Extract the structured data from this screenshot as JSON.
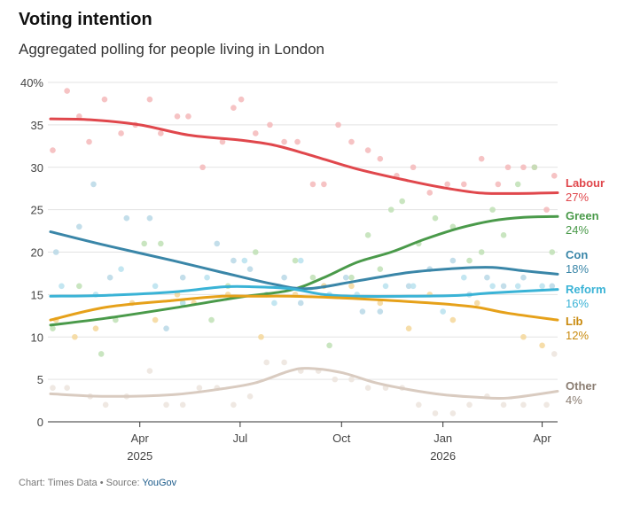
{
  "header": {
    "title": "Voting intention",
    "subtitle": "Aggregated polling for people living in London"
  },
  "footer": {
    "prefix": "Chart: Times Data • Source: ",
    "source": "YouGov"
  },
  "chart_data": {
    "type": "line",
    "title": "Voting intention",
    "subtitle": "Aggregated polling for people living in London",
    "xlabel": "",
    "ylabel": "",
    "x_range": [
      "2025-01-10",
      "2026-04-15"
    ],
    "ylim": [
      0,
      40
    ],
    "y_ticks": [
      {
        "value": 0,
        "label": "0"
      },
      {
        "value": 5,
        "label": "5"
      },
      {
        "value": 10,
        "label": "10"
      },
      {
        "value": 15,
        "label": "15"
      },
      {
        "value": 20,
        "label": "20"
      },
      {
        "value": 25,
        "label": "25"
      },
      {
        "value": 30,
        "label": "30"
      },
      {
        "value": 35,
        "label": "35"
      },
      {
        "value": 40,
        "label": "40%"
      }
    ],
    "x_ticks": [
      {
        "date": "2025-04-01",
        "label": "Apr",
        "year": "2025"
      },
      {
        "date": "2025-07-01",
        "label": "Jul",
        "year": ""
      },
      {
        "date": "2025-10-01",
        "label": "Oct",
        "year": ""
      },
      {
        "date": "2026-01-01",
        "label": "Jan",
        "year": "2026"
      },
      {
        "date": "2026-04-01",
        "label": "Apr",
        "year": ""
      }
    ],
    "grid": true,
    "series": [
      {
        "name": "Labour",
        "end_label": "27%",
        "color": "#e0474c",
        "dot_color": "#f5b8ba",
        "line": [
          [
            "2025-01-10",
            35.7
          ],
          [
            "2025-02-15",
            35.6
          ],
          [
            "2025-04-01",
            35.0
          ],
          [
            "2025-05-15",
            33.8
          ],
          [
            "2025-07-01",
            33.2
          ],
          [
            "2025-08-01",
            32.6
          ],
          [
            "2025-09-01",
            31.5
          ],
          [
            "2025-10-15",
            29.8
          ],
          [
            "2025-12-01",
            28.4
          ],
          [
            "2026-01-01",
            27.6
          ],
          [
            "2026-02-01",
            27.0
          ],
          [
            "2026-03-01",
            26.9
          ],
          [
            "2026-04-15",
            27.0
          ]
        ],
        "polls": [
          [
            "2025-01-12",
            32
          ],
          [
            "2025-01-25",
            39
          ],
          [
            "2025-02-05",
            36
          ],
          [
            "2025-02-14",
            33
          ],
          [
            "2025-02-28",
            38
          ],
          [
            "2025-03-15",
            34
          ],
          [
            "2025-03-28",
            35
          ],
          [
            "2025-04-10",
            38
          ],
          [
            "2025-04-20",
            34
          ],
          [
            "2025-05-05",
            36
          ],
          [
            "2025-05-15",
            36
          ],
          [
            "2025-05-28",
            30
          ],
          [
            "2025-06-15",
            33
          ],
          [
            "2025-06-25",
            37
          ],
          [
            "2025-07-02",
            38
          ],
          [
            "2025-07-15",
            34
          ],
          [
            "2025-07-28",
            35
          ],
          [
            "2025-08-10",
            33
          ],
          [
            "2025-08-22",
            33
          ],
          [
            "2025-09-05",
            28
          ],
          [
            "2025-09-15",
            28
          ],
          [
            "2025-09-28",
            35
          ],
          [
            "2025-10-10",
            33
          ],
          [
            "2025-10-25",
            32
          ],
          [
            "2025-11-05",
            31
          ],
          [
            "2025-11-20",
            29
          ],
          [
            "2025-12-05",
            30
          ],
          [
            "2025-12-20",
            27
          ],
          [
            "2026-01-05",
            28
          ],
          [
            "2026-01-20",
            28
          ],
          [
            "2026-02-05",
            31
          ],
          [
            "2026-02-20",
            28
          ],
          [
            "2026-03-01",
            30
          ],
          [
            "2026-03-15",
            30
          ],
          [
            "2026-03-25",
            30
          ],
          [
            "2026-04-05",
            25
          ],
          [
            "2026-04-12",
            29
          ]
        ]
      },
      {
        "name": "Green",
        "end_label": "24%",
        "color": "#4a9a4a",
        "dot_color": "#bfe0b5",
        "line": [
          [
            "2025-01-10",
            11.4
          ],
          [
            "2025-03-01",
            12.2
          ],
          [
            "2025-05-01",
            13.4
          ],
          [
            "2025-07-01",
            14.7
          ],
          [
            "2025-08-15",
            15.5
          ],
          [
            "2025-09-15",
            17.0
          ],
          [
            "2025-10-15",
            18.8
          ],
          [
            "2025-11-15",
            20.0
          ],
          [
            "2025-12-15",
            21.5
          ],
          [
            "2026-01-15",
            22.8
          ],
          [
            "2026-02-15",
            23.7
          ],
          [
            "2026-03-15",
            24.1
          ],
          [
            "2026-04-15",
            24.2
          ]
        ],
        "polls": [
          [
            "2025-01-12",
            11
          ],
          [
            "2025-02-05",
            16
          ],
          [
            "2025-02-25",
            8
          ],
          [
            "2025-03-10",
            12
          ],
          [
            "2025-04-05",
            21
          ],
          [
            "2025-04-20",
            21
          ],
          [
            "2025-05-10",
            14
          ],
          [
            "2025-06-05",
            12
          ],
          [
            "2025-06-20",
            16
          ],
          [
            "2025-07-15",
            20
          ],
          [
            "2025-08-20",
            19
          ],
          [
            "2025-09-05",
            17
          ],
          [
            "2025-09-20",
            9
          ],
          [
            "2025-10-10",
            17
          ],
          [
            "2025-10-25",
            22
          ],
          [
            "2025-11-05",
            18
          ],
          [
            "2025-11-15",
            25
          ],
          [
            "2025-11-25",
            26
          ],
          [
            "2025-12-10",
            21
          ],
          [
            "2025-12-25",
            24
          ],
          [
            "2026-01-10",
            23
          ],
          [
            "2026-01-25",
            19
          ],
          [
            "2026-02-05",
            20
          ],
          [
            "2026-02-15",
            25
          ],
          [
            "2026-02-25",
            22
          ],
          [
            "2026-03-10",
            28
          ],
          [
            "2026-03-25",
            30
          ],
          [
            "2026-04-10",
            20
          ]
        ]
      },
      {
        "name": "Con",
        "end_label": "18%",
        "color": "#3a86a8",
        "dot_color": "#b8d8e6",
        "line": [
          [
            "2025-01-10",
            22.4
          ],
          [
            "2025-03-01",
            20.8
          ],
          [
            "2025-05-01",
            19.0
          ],
          [
            "2025-06-15",
            17.6
          ],
          [
            "2025-08-01",
            16.2
          ],
          [
            "2025-09-01",
            15.7
          ],
          [
            "2025-10-15",
            16.6
          ],
          [
            "2025-12-01",
            17.6
          ],
          [
            "2026-01-15",
            18.1
          ],
          [
            "2026-02-15",
            18.2
          ],
          [
            "2026-03-15",
            17.8
          ],
          [
            "2026-04-15",
            17.4
          ]
        ],
        "polls": [
          [
            "2025-01-15",
            20
          ],
          [
            "2025-02-05",
            23
          ],
          [
            "2025-02-18",
            28
          ],
          [
            "2025-03-05",
            17
          ],
          [
            "2025-03-20",
            24
          ],
          [
            "2025-04-10",
            24
          ],
          [
            "2025-04-25",
            11
          ],
          [
            "2025-05-10",
            17
          ],
          [
            "2025-06-10",
            21
          ],
          [
            "2025-06-25",
            19
          ],
          [
            "2025-07-10",
            18
          ],
          [
            "2025-07-25",
            15
          ],
          [
            "2025-08-10",
            17
          ],
          [
            "2025-08-25",
            14
          ],
          [
            "2025-09-15",
            16
          ],
          [
            "2025-10-05",
            17
          ],
          [
            "2025-10-20",
            13
          ],
          [
            "2025-11-05",
            13
          ],
          [
            "2025-12-01",
            16
          ],
          [
            "2025-12-20",
            18
          ],
          [
            "2026-01-10",
            19
          ],
          [
            "2026-01-25",
            15
          ],
          [
            "2026-02-10",
            17
          ],
          [
            "2026-02-25",
            16
          ],
          [
            "2026-03-15",
            17
          ],
          [
            "2026-04-10",
            16
          ]
        ]
      },
      {
        "name": "Reform",
        "end_label": "16%",
        "color": "#3ab3d6",
        "dot_color": "#b8e2ef",
        "line": [
          [
            "2025-01-10",
            14.8
          ],
          [
            "2025-03-01",
            14.9
          ],
          [
            "2025-05-01",
            15.3
          ],
          [
            "2025-06-15",
            15.9
          ],
          [
            "2025-07-15",
            15.9
          ],
          [
            "2025-08-15",
            15.7
          ],
          [
            "2025-09-15",
            15.0
          ],
          [
            "2025-10-15",
            14.8
          ],
          [
            "2025-12-01",
            14.8
          ],
          [
            "2026-01-15",
            14.9
          ],
          [
            "2026-02-15",
            15.2
          ],
          [
            "2026-04-15",
            15.6
          ]
        ],
        "polls": [
          [
            "2025-01-20",
            16
          ],
          [
            "2025-02-20",
            15
          ],
          [
            "2025-03-15",
            18
          ],
          [
            "2025-04-15",
            16
          ],
          [
            "2025-05-10",
            14
          ],
          [
            "2025-06-01",
            17
          ],
          [
            "2025-07-05",
            19
          ],
          [
            "2025-08-01",
            14
          ],
          [
            "2025-08-25",
            19
          ],
          [
            "2025-09-20",
            15
          ],
          [
            "2025-10-15",
            15
          ],
          [
            "2025-11-10",
            16
          ],
          [
            "2025-12-05",
            16
          ],
          [
            "2026-01-01",
            13
          ],
          [
            "2026-01-20",
            17
          ],
          [
            "2026-02-15",
            16
          ],
          [
            "2026-03-10",
            16
          ],
          [
            "2026-04-01",
            16
          ]
        ]
      },
      {
        "name": "Lib",
        "end_label": "12%",
        "color": "#e6a11a",
        "dot_color": "#f5d79a",
        "line": [
          [
            "2025-01-10",
            12.0
          ],
          [
            "2025-03-01",
            13.5
          ],
          [
            "2025-05-01",
            14.3
          ],
          [
            "2025-06-15",
            14.8
          ],
          [
            "2025-07-15",
            14.8
          ],
          [
            "2025-08-15",
            14.8
          ],
          [
            "2025-10-01",
            14.6
          ],
          [
            "2025-11-15",
            14.3
          ],
          [
            "2026-01-01",
            13.9
          ],
          [
            "2026-02-01",
            13.5
          ],
          [
            "2026-03-01",
            12.8
          ],
          [
            "2026-04-15",
            12.0
          ]
        ],
        "polls": [
          [
            "2025-01-15",
            12
          ],
          [
            "2025-02-01",
            10
          ],
          [
            "2025-02-20",
            11
          ],
          [
            "2025-03-25",
            14
          ],
          [
            "2025-04-15",
            12
          ],
          [
            "2025-05-05",
            15
          ],
          [
            "2025-05-20",
            14
          ],
          [
            "2025-06-20",
            15
          ],
          [
            "2025-07-20",
            10
          ],
          [
            "2025-08-20",
            15
          ],
          [
            "2025-09-15",
            16
          ],
          [
            "2025-10-10",
            16
          ],
          [
            "2025-11-05",
            14
          ],
          [
            "2025-12-01",
            11
          ],
          [
            "2025-12-20",
            15
          ],
          [
            "2026-01-10",
            12
          ],
          [
            "2026-02-01",
            14
          ],
          [
            "2026-03-15",
            10
          ],
          [
            "2026-04-01",
            9
          ]
        ]
      },
      {
        "name": "Other",
        "end_label": "4%",
        "color": "#d9cbc0",
        "dot_color": "#ece4dd",
        "line": [
          [
            "2025-01-10",
            3.3
          ],
          [
            "2025-03-01",
            3.0
          ],
          [
            "2025-05-01",
            3.2
          ],
          [
            "2025-06-15",
            3.9
          ],
          [
            "2025-07-15",
            4.6
          ],
          [
            "2025-08-15",
            6.0
          ],
          [
            "2025-09-01",
            6.3
          ],
          [
            "2025-10-01",
            5.8
          ],
          [
            "2025-11-01",
            4.6
          ],
          [
            "2025-12-01",
            3.8
          ],
          [
            "2026-01-01",
            3.2
          ],
          [
            "2026-02-01",
            2.9
          ],
          [
            "2026-03-01",
            2.8
          ],
          [
            "2026-04-15",
            3.6
          ]
        ],
        "polls": [
          [
            "2025-01-12",
            4
          ],
          [
            "2025-01-25",
            4
          ],
          [
            "2025-02-15",
            3
          ],
          [
            "2025-03-01",
            2
          ],
          [
            "2025-03-20",
            3
          ],
          [
            "2025-04-10",
            6
          ],
          [
            "2025-04-25",
            2
          ],
          [
            "2025-05-10",
            2
          ],
          [
            "2025-05-25",
            4
          ],
          [
            "2025-06-10",
            4
          ],
          [
            "2025-06-25",
            2
          ],
          [
            "2025-07-10",
            3
          ],
          [
            "2025-07-25",
            7
          ],
          [
            "2025-08-10",
            7
          ],
          [
            "2025-08-25",
            6
          ],
          [
            "2025-09-10",
            6
          ],
          [
            "2025-09-25",
            5
          ],
          [
            "2025-10-10",
            5
          ],
          [
            "2025-10-25",
            4
          ],
          [
            "2025-11-10",
            4
          ],
          [
            "2025-11-25",
            4
          ],
          [
            "2025-12-10",
            2
          ],
          [
            "2025-12-25",
            1
          ],
          [
            "2026-01-10",
            1
          ],
          [
            "2026-01-25",
            2
          ],
          [
            "2026-02-10",
            3
          ],
          [
            "2026-02-25",
            2
          ],
          [
            "2026-03-15",
            2
          ],
          [
            "2026-04-05",
            2
          ],
          [
            "2026-04-12",
            8
          ]
        ]
      }
    ]
  }
}
